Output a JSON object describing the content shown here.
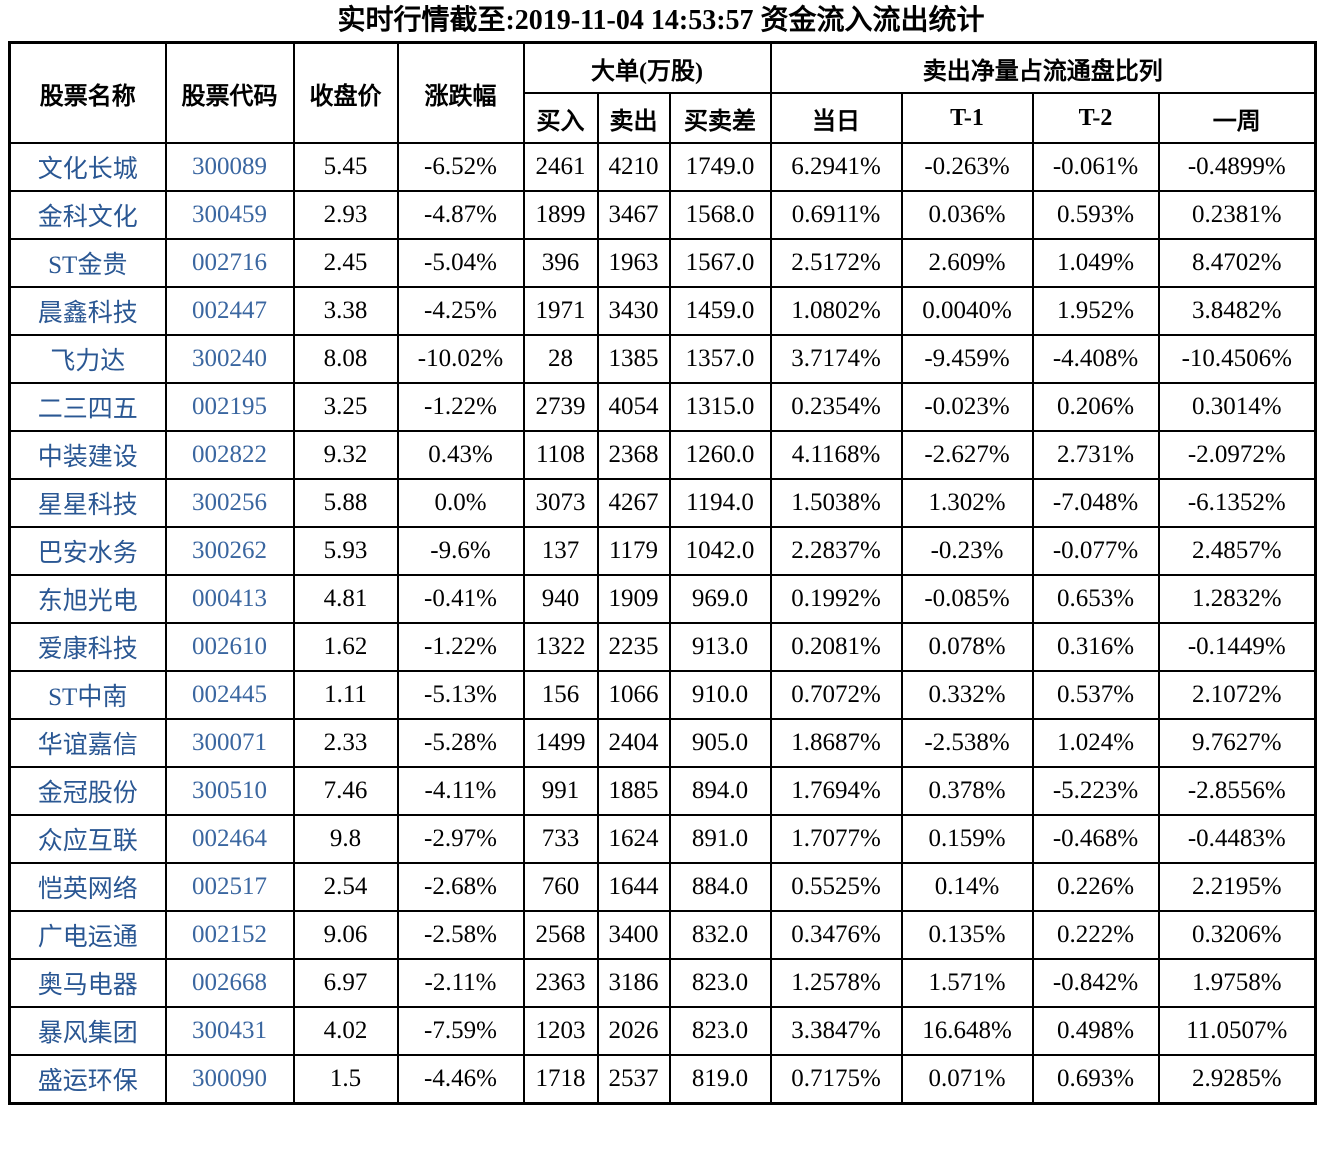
{
  "title": "实时行情截至:2019-11-04 14:53:57 资金流入流出统计",
  "colors": {
    "stock_name_text": "#2A5793",
    "stock_code_text": "#3A66A0",
    "body_text": "#000000",
    "border": "#000000",
    "background": "#ffffff"
  },
  "chart_data": {
    "type": "table",
    "title": "实时行情截至:2019-11-04 14:53:57 资金流入流出统计",
    "column_groups": [
      {
        "label": "大单(万股)",
        "spans": [
          "买入",
          "卖出",
          "买卖差"
        ]
      },
      {
        "label": "卖出净量占流通盘比列",
        "spans": [
          "当日",
          "T-1",
          "T-2",
          "一周"
        ]
      }
    ],
    "columns": [
      "股票名称",
      "股票代码",
      "收盘价",
      "涨跌幅",
      "买入",
      "卖出",
      "买卖差",
      "当日",
      "T-1",
      "T-2",
      "一周"
    ],
    "rows": [
      [
        "文化长城",
        "300089",
        "5.45",
        "-6.52%",
        "2461",
        "4210",
        "1749.0",
        "6.2941%",
        "-0.263%",
        "-0.061%",
        "-0.4899%"
      ],
      [
        "金科文化",
        "300459",
        "2.93",
        "-4.87%",
        "1899",
        "3467",
        "1568.0",
        "0.6911%",
        "0.036%",
        "0.593%",
        "0.2381%"
      ],
      [
        "ST金贵",
        "002716",
        "2.45",
        "-5.04%",
        "396",
        "1963",
        "1567.0",
        "2.5172%",
        "2.609%",
        "1.049%",
        "8.4702%"
      ],
      [
        "晨鑫科技",
        "002447",
        "3.38",
        "-4.25%",
        "1971",
        "3430",
        "1459.0",
        "1.0802%",
        "0.0040%",
        "1.952%",
        "3.8482%"
      ],
      [
        "飞力达",
        "300240",
        "8.08",
        "-10.02%",
        "28",
        "1385",
        "1357.0",
        "3.7174%",
        "-9.459%",
        "-4.408%",
        "-10.4506%"
      ],
      [
        "二三四五",
        "002195",
        "3.25",
        "-1.22%",
        "2739",
        "4054",
        "1315.0",
        "0.2354%",
        "-0.023%",
        "0.206%",
        "0.3014%"
      ],
      [
        "中装建设",
        "002822",
        "9.32",
        "0.43%",
        "1108",
        "2368",
        "1260.0",
        "4.1168%",
        "-2.627%",
        "2.731%",
        "-2.0972%"
      ],
      [
        "星星科技",
        "300256",
        "5.88",
        "0.0%",
        "3073",
        "4267",
        "1194.0",
        "1.5038%",
        "1.302%",
        "-7.048%",
        "-6.1352%"
      ],
      [
        "巴安水务",
        "300262",
        "5.93",
        "-9.6%",
        "137",
        "1179",
        "1042.0",
        "2.2837%",
        "-0.23%",
        "-0.077%",
        "2.4857%"
      ],
      [
        "东旭光电",
        "000413",
        "4.81",
        "-0.41%",
        "940",
        "1909",
        "969.0",
        "0.1992%",
        "-0.085%",
        "0.653%",
        "1.2832%"
      ],
      [
        "爱康科技",
        "002610",
        "1.62",
        "-1.22%",
        "1322",
        "2235",
        "913.0",
        "0.2081%",
        "0.078%",
        "0.316%",
        "-0.1449%"
      ],
      [
        "ST中南",
        "002445",
        "1.11",
        "-5.13%",
        "156",
        "1066",
        "910.0",
        "0.7072%",
        "0.332%",
        "0.537%",
        "2.1072%"
      ],
      [
        "华谊嘉信",
        "300071",
        "2.33",
        "-5.28%",
        "1499",
        "2404",
        "905.0",
        "1.8687%",
        "-2.538%",
        "1.024%",
        "9.7627%"
      ],
      [
        "金冠股份",
        "300510",
        "7.46",
        "-4.11%",
        "991",
        "1885",
        "894.0",
        "1.7694%",
        "0.378%",
        "-5.223%",
        "-2.8556%"
      ],
      [
        "众应互联",
        "002464",
        "9.8",
        "-2.97%",
        "733",
        "1624",
        "891.0",
        "1.7077%",
        "0.159%",
        "-0.468%",
        "-0.4483%"
      ],
      [
        "恺英网络",
        "002517",
        "2.54",
        "-2.68%",
        "760",
        "1644",
        "884.0",
        "0.5525%",
        "0.14%",
        "0.226%",
        "2.2195%"
      ],
      [
        "广电运通",
        "002152",
        "9.06",
        "-2.58%",
        "2568",
        "3400",
        "832.0",
        "0.3476%",
        "0.135%",
        "0.222%",
        "0.3206%"
      ],
      [
        "奥马电器",
        "002668",
        "6.97",
        "-2.11%",
        "2363",
        "3186",
        "823.0",
        "1.2578%",
        "1.571%",
        "-0.842%",
        "1.9758%"
      ],
      [
        "暴风集团",
        "300431",
        "4.02",
        "-7.59%",
        "1203",
        "2026",
        "823.0",
        "3.3847%",
        "16.648%",
        "0.498%",
        "11.0507%"
      ],
      [
        "盛运环保",
        "300090",
        "1.5",
        "-4.46%",
        "1718",
        "2537",
        "819.0",
        "0.7175%",
        "0.071%",
        "0.693%",
        "2.9285%"
      ]
    ]
  }
}
